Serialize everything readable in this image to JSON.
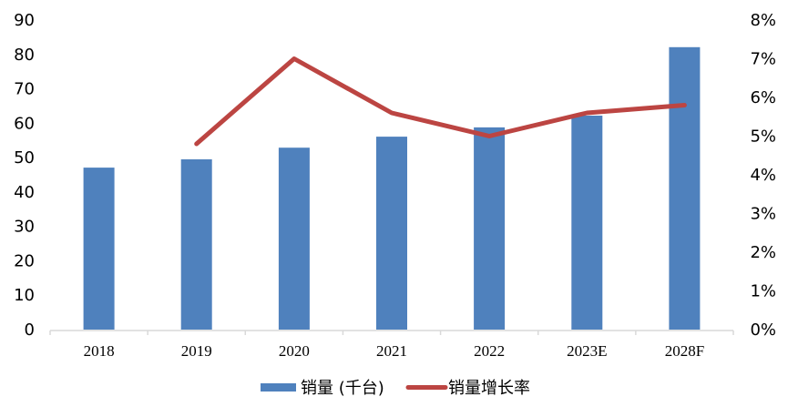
{
  "chart_data": {
    "type": "bar+line",
    "title": "",
    "categories": [
      "2018",
      "2019",
      "2020",
      "2021",
      "2022",
      "2023E",
      "2028F"
    ],
    "series": [
      {
        "name": "销量 (千台)",
        "type": "bar",
        "axis": "left",
        "color": "#4F81BD",
        "values": [
          47.1,
          49.5,
          52.9,
          56.1,
          58.8,
          62.2,
          82.1
        ]
      },
      {
        "name": "销量增长率",
        "type": "line",
        "axis": "right",
        "color": "#BC4542",
        "values": [
          null,
          4.8,
          7.0,
          5.6,
          5.0,
          5.6,
          5.8
        ],
        "unit": "%"
      }
    ],
    "left_axis": {
      "label": "",
      "ylim": [
        0,
        90
      ],
      "ticks": [
        "0",
        "10",
        "20",
        "30",
        "40",
        "50",
        "60",
        "70",
        "80",
        "90"
      ]
    },
    "right_axis": {
      "label": "",
      "ylim": [
        0,
        8
      ],
      "ticks": [
        "0%",
        "1%",
        "2%",
        "3%",
        "4%",
        "5%",
        "6%",
        "7%",
        "8%"
      ]
    },
    "xlabel": "",
    "grid": false,
    "legend_position": "bottom"
  },
  "legend": {
    "bar_label": "销量 (千台)",
    "line_label": "销量增长率"
  }
}
